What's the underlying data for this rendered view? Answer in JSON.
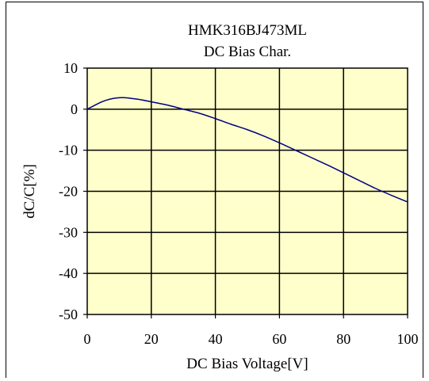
{
  "chart_data": {
    "type": "line",
    "title": "HMK316BJ473ML",
    "subtitle": "DC Bias Char.",
    "xlabel": "DC Bias Voltage[V]",
    "ylabel": "dC/C[%]",
    "xlim": [
      0,
      100
    ],
    "ylim": [
      -50,
      10
    ],
    "xticks": [
      0,
      20,
      40,
      60,
      80,
      100
    ],
    "yticks": [
      10,
      0,
      -10,
      -20,
      -30,
      -40,
      -50
    ],
    "xtick_labels": [
      "0",
      "20",
      "40",
      "60",
      "80",
      "100"
    ],
    "ytick_labels": [
      "10",
      "0",
      "-10",
      "-20",
      "-30",
      "-40",
      "-50"
    ],
    "grid": true,
    "plot_background": "#ffffcc",
    "series": [
      {
        "color": "#000080",
        "x": [
          0,
          2,
          4,
          6,
          8,
          10,
          12,
          14,
          16,
          20,
          25,
          30,
          35,
          40,
          45,
          50,
          55,
          60,
          65,
          70,
          75,
          80,
          85,
          90,
          95,
          100
        ],
        "y": [
          0,
          0.8,
          1.6,
          2.2,
          2.6,
          2.8,
          2.8,
          2.6,
          2.4,
          1.8,
          1.0,
          0.0,
          -1.0,
          -2.3,
          -3.7,
          -5.0,
          -6.5,
          -8.2,
          -10.0,
          -11.8,
          -13.6,
          -15.5,
          -17.4,
          -19.3,
          -21.0,
          -22.6
        ]
      }
    ]
  }
}
